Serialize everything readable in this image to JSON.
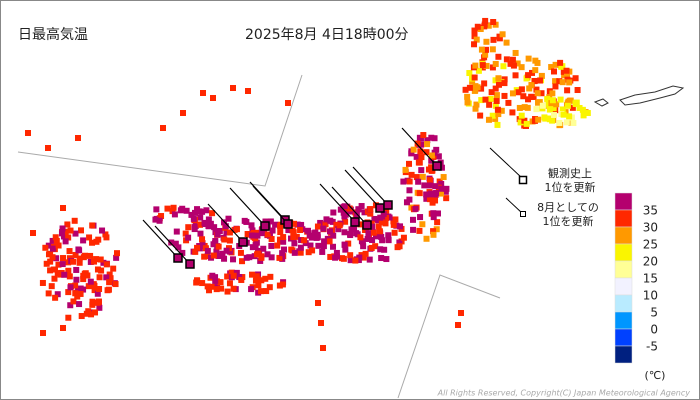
{
  "title": "日最高気温",
  "datetime": "2025年8月 4日18時00分",
  "annotations": {
    "record_all_time": "観測史上\n1位を更新",
    "record_august": "8月としての\n1位を更新"
  },
  "legend": {
    "thresholds": [
      35,
      30,
      25,
      20,
      15,
      10,
      5,
      0,
      -5
    ],
    "colors": [
      "#b4006e",
      "#ff2800",
      "#ff9900",
      "#faf500",
      "#ffff96",
      "#f2f2ff",
      "#b9ebff",
      "#0096ff",
      "#0041ff",
      "#002080"
    ],
    "unit": "(℃)"
  },
  "copyright": "All Rights Reserved, Copyright(C) Japan Meteorological Agency"
}
